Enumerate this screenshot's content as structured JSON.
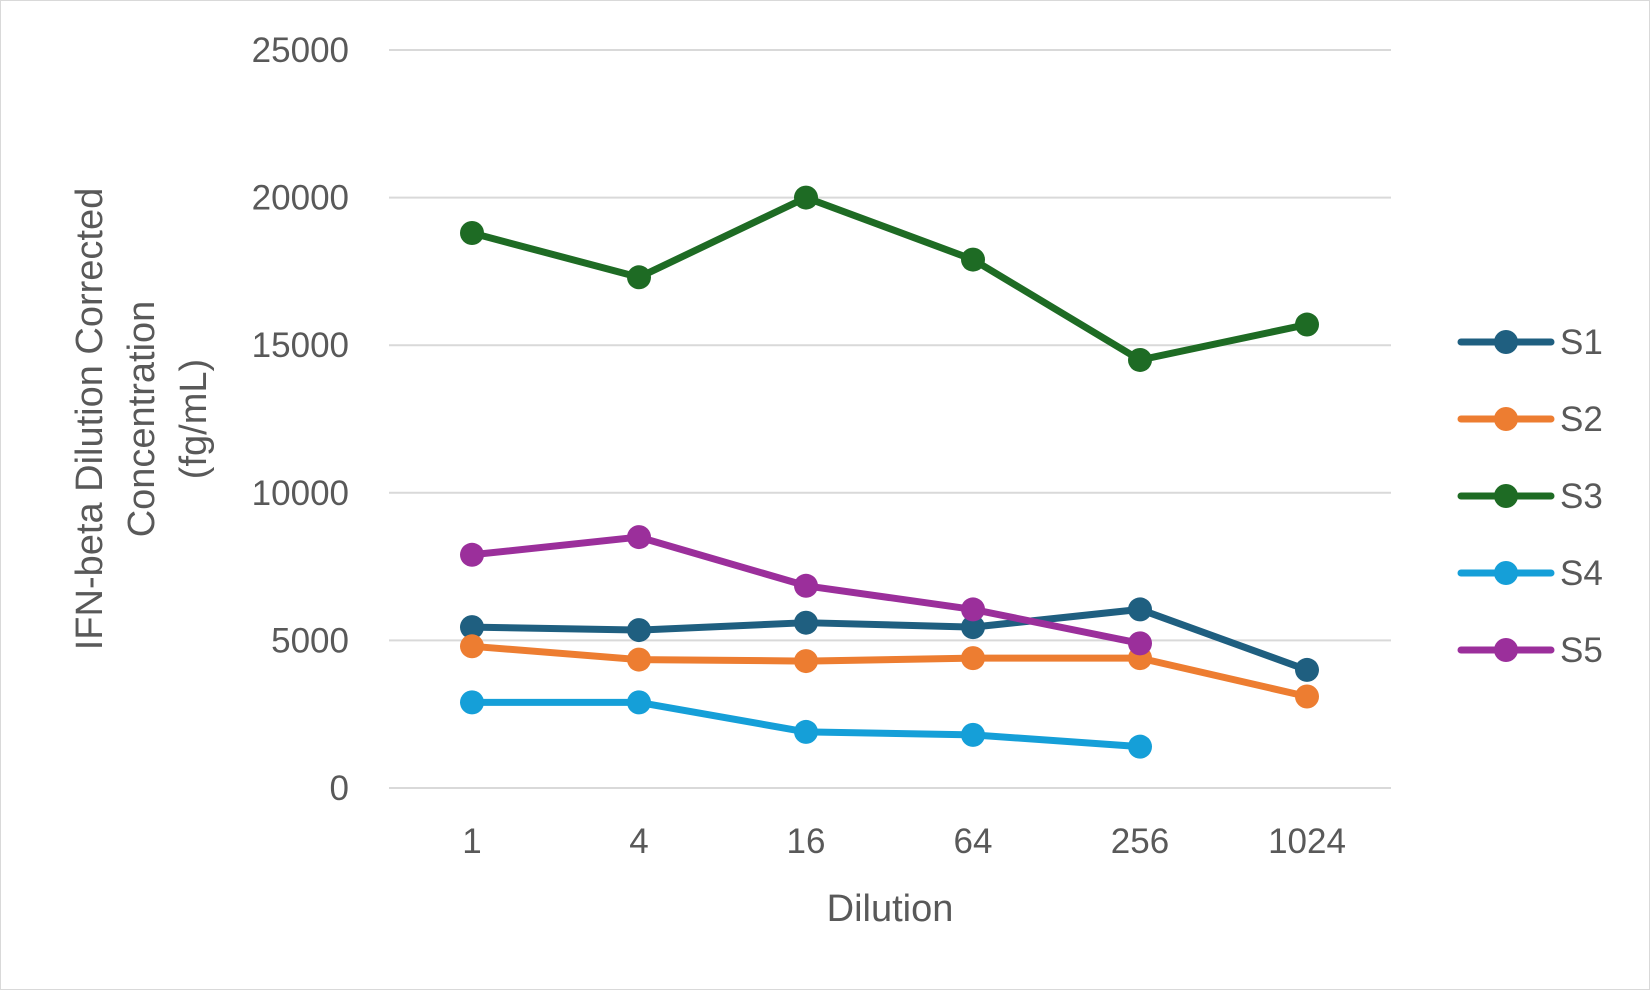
{
  "chart_data": {
    "type": "line",
    "title": "",
    "xlabel": "Dilution",
    "ylabel_lines": [
      "IFN-beta Dilution Corrected",
      "Concentration",
      "(fg/mL)"
    ],
    "categories": [
      "1",
      "4",
      "16",
      "64",
      "256",
      "1024"
    ],
    "y_ticks": [
      "0",
      "5000",
      "10000",
      "15000",
      "20000",
      "25000"
    ],
    "ylim": [
      0,
      25000
    ],
    "grid": true,
    "legend_position": "right",
    "series": [
      {
        "name": "S1",
        "color": "#1f5f80",
        "values": [
          5450,
          5350,
          5600,
          5450,
          6050,
          4000
        ]
      },
      {
        "name": "S2",
        "color": "#ed7d31",
        "values": [
          4800,
          4350,
          4300,
          4400,
          4400,
          3100
        ]
      },
      {
        "name": "S3",
        "color": "#1e6b24",
        "values": [
          18800,
          17300,
          20000,
          17900,
          14500,
          15700
        ]
      },
      {
        "name": "S4",
        "color": "#159fd8",
        "values": [
          2900,
          2900,
          1900,
          1800,
          1400,
          null
        ]
      },
      {
        "name": "S5",
        "color": "#9b2f9b",
        "values": [
          7900,
          8500,
          6850,
          6050,
          4900,
          null
        ]
      }
    ]
  }
}
